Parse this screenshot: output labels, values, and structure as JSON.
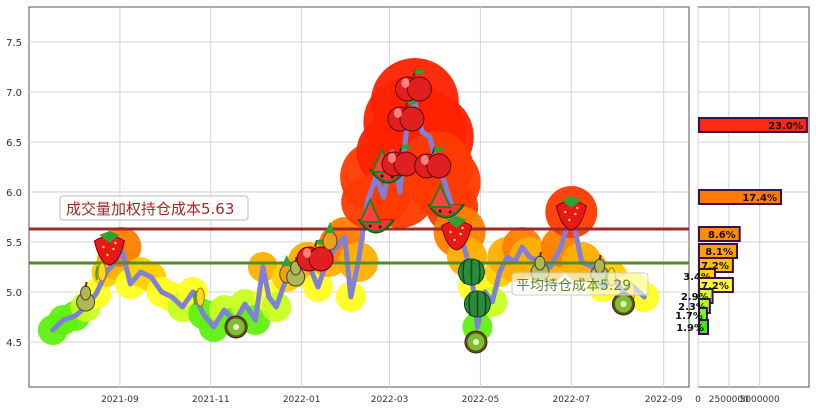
{
  "chart_data": {
    "type": "line",
    "x_ticks": [
      "2021-09",
      "2021-11",
      "2022-01",
      "2022-03",
      "2022-05",
      "2022-07",
      "2022-09"
    ],
    "y_ticks": [
      4.5,
      5.0,
      5.5,
      6.0,
      6.5,
      7.0,
      7.5
    ],
    "ylim": [
      4.05,
      7.85
    ],
    "xlim": [
      "2021-07-02",
      "2022-09-18"
    ],
    "series": [
      {
        "color": "#8080d8",
        "points": [
          [
            "2021-07-18",
            4.62
          ],
          [
            "2021-07-25",
            4.72
          ],
          [
            "2021-08-02",
            4.76
          ],
          [
            "2021-08-09",
            4.85
          ],
          [
            "2021-08-16",
            4.98
          ],
          [
            "2021-08-23",
            5.2
          ],
          [
            "2021-08-30",
            5.32
          ],
          [
            "2021-09-02",
            5.45
          ],
          [
            "2021-09-08",
            5.08
          ],
          [
            "2021-09-15",
            5.2
          ],
          [
            "2021-09-22",
            5.15
          ],
          [
            "2021-09-29",
            5.0
          ],
          [
            "2021-10-06",
            4.95
          ],
          [
            "2021-10-13",
            4.85
          ],
          [
            "2021-10-20",
            5.0
          ],
          [
            "2021-10-27",
            4.78
          ],
          [
            "2021-11-03",
            4.65
          ],
          [
            "2021-11-10",
            4.82
          ],
          [
            "2021-11-17",
            4.7
          ],
          [
            "2021-11-24",
            4.88
          ],
          [
            "2021-12-01",
            4.72
          ],
          [
            "2021-12-06",
            5.25
          ],
          [
            "2021-12-10",
            4.95
          ],
          [
            "2021-12-15",
            4.85
          ],
          [
            "2021-12-22",
            5.15
          ],
          [
            "2021-12-29",
            5.2
          ],
          [
            "2022-01-05",
            5.3
          ],
          [
            "2022-01-12",
            5.05
          ],
          [
            "2022-01-19",
            5.35
          ],
          [
            "2022-01-26",
            5.48
          ],
          [
            "2022-01-30",
            5.55
          ],
          [
            "2022-02-03",
            4.95
          ],
          [
            "2022-02-08",
            5.3
          ],
          [
            "2022-02-14",
            5.9
          ],
          [
            "2022-02-20",
            6.15
          ],
          [
            "2022-02-25",
            5.95
          ],
          [
            "2022-03-03",
            6.4
          ],
          [
            "2022-03-08",
            6.0
          ],
          [
            "2022-03-13",
            6.7
          ],
          [
            "2022-03-18",
            6.9
          ],
          [
            "2022-03-23",
            6.6
          ],
          [
            "2022-03-28",
            6.55
          ],
          [
            "2022-04-02",
            6.25
          ],
          [
            "2022-04-07",
            6.1
          ],
          [
            "2022-04-12",
            5.85
          ],
          [
            "2022-04-17",
            5.6
          ],
          [
            "2022-04-22",
            5.35
          ],
          [
            "2022-04-26",
            5.05
          ],
          [
            "2022-04-29",
            4.65
          ],
          [
            "2022-05-04",
            5.0
          ],
          [
            "2022-05-09",
            4.9
          ],
          [
            "2022-05-14",
            5.2
          ],
          [
            "2022-05-19",
            5.35
          ],
          [
            "2022-05-24",
            5.3
          ],
          [
            "2022-05-29",
            5.45
          ],
          [
            "2022-06-03",
            5.35
          ],
          [
            "2022-06-10",
            5.3
          ],
          [
            "2022-06-17",
            5.25
          ],
          [
            "2022-06-24",
            5.45
          ],
          [
            "2022-07-01",
            5.8
          ],
          [
            "2022-07-08",
            5.3
          ],
          [
            "2022-07-15",
            5.25
          ],
          [
            "2022-07-22",
            5.05
          ],
          [
            "2022-07-29",
            5.15
          ],
          [
            "2022-08-05",
            5.0
          ],
          [
            "2022-08-12",
            5.05
          ],
          [
            "2022-08-19",
            4.95
          ]
        ]
      }
    ],
    "reference_lines": [
      {
        "label": "成交量加权持仓成本5.63",
        "value": 5.63,
        "color": "#a0282a"
      },
      {
        "label": "平均持仓成本5.29",
        "value": 5.29,
        "color": "#5a8a28"
      }
    ],
    "bar_panel": {
      "type": "bar",
      "x_ticks": [
        "0",
        "2500000",
        "5000000"
      ],
      "xlim": [
        0,
        9000000
      ],
      "bars": [
        {
          "price": 6.67,
          "value": 8750000,
          "label": "23.0%",
          "color": "#ff2a10"
        },
        {
          "price": 5.95,
          "value": 6650000,
          "label": "17.4%",
          "color": "#ff7a00"
        },
        {
          "price": 5.58,
          "value": 3300000,
          "label": "8.6%",
          "color": "#ff8a00"
        },
        {
          "price": 5.41,
          "value": 3080000,
          "label": "8.1%",
          "color": "#ffa000"
        },
        {
          "price": 5.27,
          "value": 2750000,
          "label": "7.2%",
          "color": "#ffc000"
        },
        {
          "price": 5.16,
          "value": 1300000,
          "label": "3.4%",
          "color": "#ffd000"
        },
        {
          "price": 5.07,
          "value": 2750000,
          "label": "7.2%",
          "color": "#ffff30"
        },
        {
          "price": 4.96,
          "value": 1100000,
          "label": "2.9%",
          "color": "#d0ff30"
        },
        {
          "price": 4.86,
          "value": 880000,
          "label": "2.3%",
          "color": "#a8ff20"
        },
        {
          "price": 4.77,
          "value": 640000,
          "label": "1.7%",
          "color": "#70ff20"
        },
        {
          "price": 4.65,
          "value": 730000,
          "label": "1.9%",
          "color": "#38e810"
        }
      ]
    }
  }
}
